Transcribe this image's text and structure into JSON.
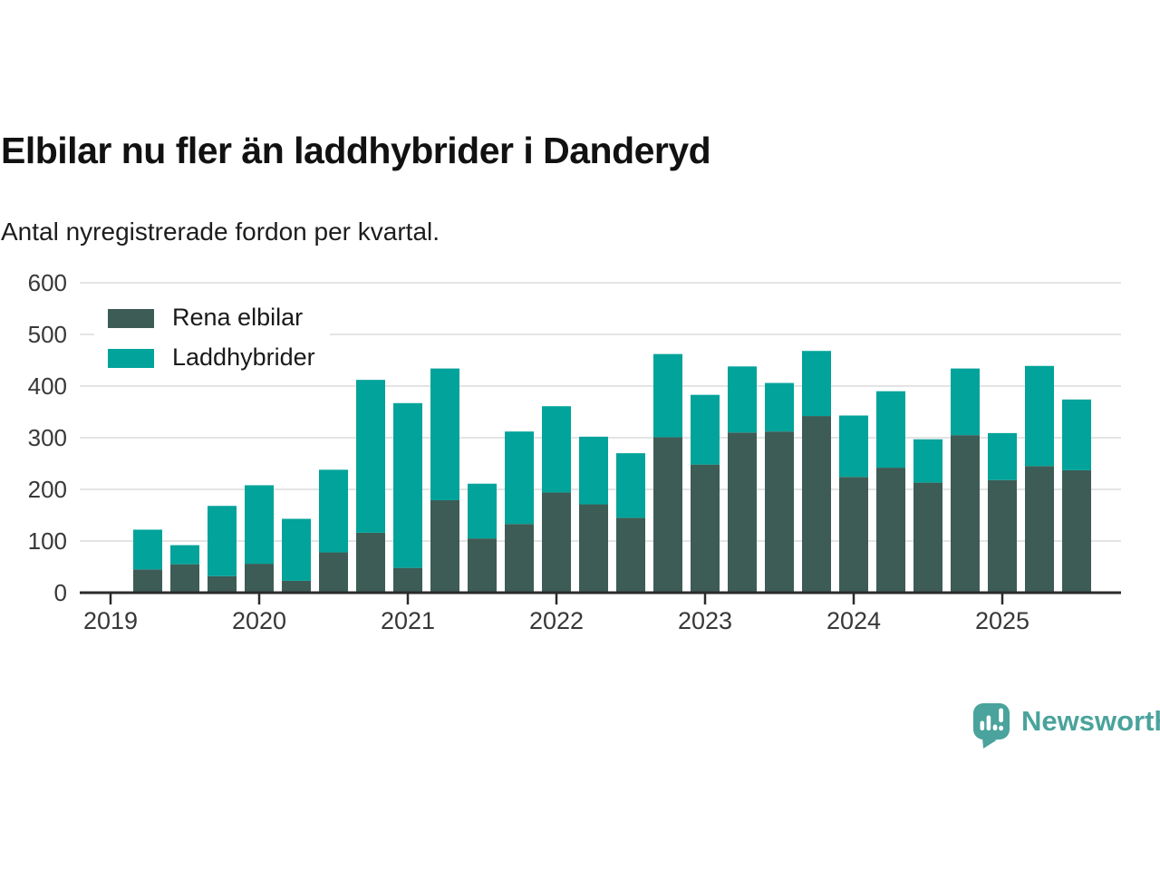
{
  "header": {
    "title": "Elbilar nu fler än laddhybrider i Danderyd",
    "subtitle": "Antal nyregistrerade fordon per kvartal."
  },
  "chart_data": {
    "type": "bar",
    "stacked": true,
    "title": "Elbilar nu fler än laddhybrider i Danderyd",
    "subtitle": "Antal nyregistrerade fordon per kvartal.",
    "categories": [
      "2019-Q2",
      "2019-Q3",
      "2019-Q4",
      "2020-Q1",
      "2020-Q2",
      "2020-Q3",
      "2020-Q4",
      "2021-Q1",
      "2021-Q2",
      "2021-Q3",
      "2021-Q4",
      "2022-Q1",
      "2022-Q2",
      "2022-Q3",
      "2022-Q4",
      "2023-Q1",
      "2023-Q2",
      "2023-Q3",
      "2023-Q4",
      "2024-Q1",
      "2024-Q2",
      "2024-Q3",
      "2024-Q4",
      "2025-Q1",
      "2025-Q2",
      "2025-Q3"
    ],
    "series": [
      {
        "name": "Rena elbilar",
        "color": "#3d5c55",
        "values": [
          45,
          55,
          32,
          56,
          23,
          78,
          116,
          48,
          179,
          105,
          133,
          194,
          171,
          145,
          301,
          248,
          310,
          312,
          342,
          224,
          242,
          213,
          305,
          218,
          245,
          237
        ]
      },
      {
        "name": "Laddhybrider",
        "color": "#01a39a",
        "values": [
          77,
          37,
          136,
          152,
          120,
          160,
          296,
          319,
          255,
          106,
          179,
          167,
          131,
          125,
          161,
          135,
          128,
          94,
          126,
          119,
          148,
          84,
          129,
          91,
          194,
          137
        ]
      }
    ],
    "xlabel": "",
    "ylabel": "",
    "ylim": [
      0,
      600
    ],
    "y_ticks": [
      0,
      100,
      200,
      300,
      400,
      500,
      600
    ],
    "x_tick_years": [
      2019,
      2020,
      2021,
      2022,
      2023,
      2024,
      2025
    ],
    "grid": "horizontal",
    "legend_position": "inside-top-left"
  },
  "footer": {
    "brand": "Newsworthy"
  },
  "colors": {
    "elbilar": "#3d5c55",
    "laddhybrider": "#01a39a",
    "brand": "#4aa39c",
    "gridline": "#dcdcdc",
    "axis": "#2b2b2b"
  }
}
